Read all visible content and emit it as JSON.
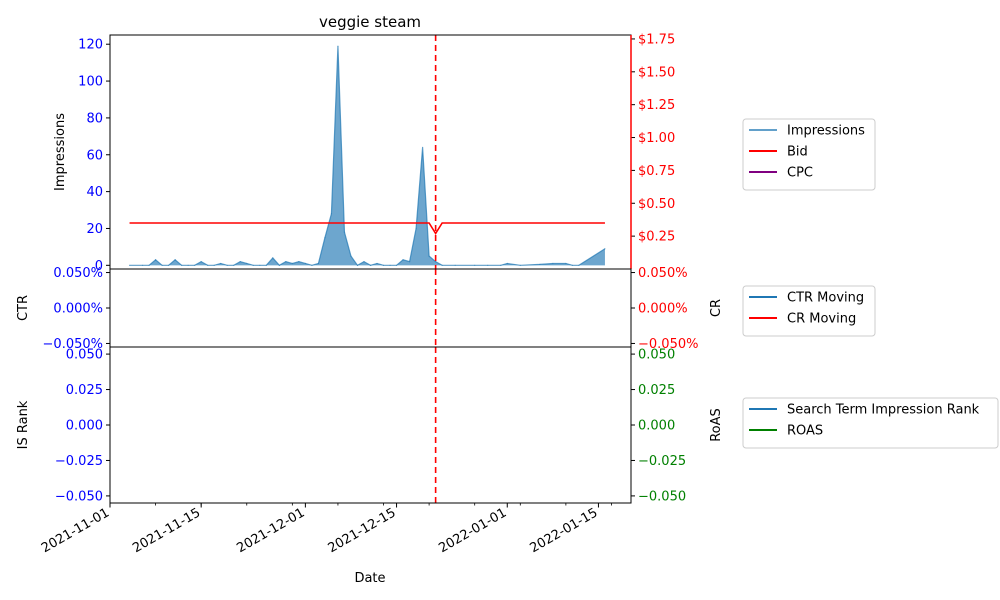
{
  "chart_data": {
    "type": "area",
    "title": "veggie steam",
    "xlabel": "Date",
    "x_range": [
      "2021-11-01",
      "2022-01-20"
    ],
    "x_ticks": [
      "2021-11-01",
      "2021-11-15",
      "2021-12-01",
      "2021-12-15",
      "2022-01-01",
      "2022-01-15"
    ],
    "vline": {
      "date": "2021-12-21",
      "color": "#ff0000",
      "style": "dashed"
    },
    "panels": [
      {
        "left_axis": {
          "label": "Impressions",
          "color": "#0000ff",
          "ylim": [
            -2,
            125
          ],
          "ticks": [
            0,
            20,
            40,
            60,
            80,
            100,
            120
          ],
          "tick_labels": [
            "0",
            "20",
            "40",
            "60",
            "80",
            "100",
            "120"
          ]
        },
        "right_axis": {
          "label": "",
          "color": "#ff0000",
          "ylim": [
            0.0,
            1.78
          ],
          "ticks": [
            0.25,
            0.5,
            0.75,
            1.0,
            1.25,
            1.5,
            1.75
          ],
          "tick_labels": [
            "$0.25",
            "$0.50",
            "$0.75",
            "$1.00",
            "$1.25",
            "$1.50",
            "$1.75"
          ]
        },
        "series": [
          {
            "name": "Impressions",
            "axis": "left",
            "kind": "area",
            "color": "#1f77b4",
            "x": [
              "2021-11-04",
              "2021-11-06",
              "2021-11-07",
              "2021-11-08",
              "2021-11-09",
              "2021-11-10",
              "2021-11-11",
              "2021-11-12",
              "2021-11-13",
              "2021-11-14",
              "2021-11-15",
              "2021-11-16",
              "2021-11-17",
              "2021-11-18",
              "2021-11-19",
              "2021-11-20",
              "2021-11-21",
              "2021-11-22",
              "2021-11-23",
              "2021-11-24",
              "2021-11-25",
              "2021-11-26",
              "2021-11-27",
              "2021-11-28",
              "2021-11-29",
              "2021-11-30",
              "2021-12-01",
              "2021-12-02",
              "2021-12-03",
              "2021-12-04",
              "2021-12-05",
              "2021-12-06",
              "2021-12-07",
              "2021-12-08",
              "2021-12-09",
              "2021-12-10",
              "2021-12-11",
              "2021-12-12",
              "2021-12-13",
              "2021-12-14",
              "2021-12-15",
              "2021-12-16",
              "2021-12-17",
              "2021-12-18",
              "2021-12-19",
              "2021-12-20",
              "2021-12-21",
              "2021-12-22",
              "2021-12-24",
              "2021-12-27",
              "2021-12-29",
              "2021-12-31",
              "2022-01-01",
              "2022-01-03",
              "2022-01-06",
              "2022-01-08",
              "2022-01-10",
              "2022-01-11",
              "2022-01-12",
              "2022-01-16"
            ],
            "values": [
              0,
              0,
              0,
              3,
              0,
              0,
              3,
              0,
              0,
              0,
              2,
              0,
              0,
              1,
              0,
              0,
              2,
              1,
              0,
              0,
              0,
              4,
              0,
              2,
              1,
              2,
              1,
              0,
              1,
              15,
              28,
              119,
              18,
              5,
              0,
              2,
              0,
              1,
              0,
              0,
              0,
              3,
              2,
              20,
              64,
              5,
              2,
              0,
              0,
              0,
              0,
              0,
              1,
              0,
              0.5,
              1,
              1,
              0,
              0,
              9
            ]
          },
          {
            "name": "Bid",
            "axis": "right",
            "kind": "line",
            "color": "#ff0000",
            "x": [
              "2021-11-04",
              "2021-12-20",
              "2021-12-21",
              "2021-12-22",
              "2022-01-16"
            ],
            "values": [
              0.35,
              0.35,
              0.27,
              0.35,
              0.35
            ]
          },
          {
            "name": "CPC",
            "axis": "right",
            "kind": "line",
            "color": "#800080",
            "x": [],
            "values": []
          }
        ],
        "legend": [
          "Impressions",
          "Bid",
          "CPC"
        ]
      },
      {
        "left_axis": {
          "label": "CTR",
          "color": "#0000ff",
          "ylim": [
            -0.055,
            0.055
          ],
          "ticks": [
            0.05,
            0.0,
            -0.05
          ],
          "tick_labels": [
            "0.050%",
            "0.000%",
            "−0.050%"
          ]
        },
        "right_axis": {
          "label": "CR",
          "color": "#ff0000",
          "ylim": [
            -0.055,
            0.055
          ],
          "ticks": [
            0.05,
            0.0,
            -0.05
          ],
          "tick_labels": [
            "0.050%",
            "0.000%",
            "−0.050%"
          ]
        },
        "series": [
          {
            "name": "CTR Moving",
            "color": "#1f77b4",
            "x": [],
            "values": []
          },
          {
            "name": "CR Moving",
            "color": "#ff0000",
            "x": [],
            "values": []
          }
        ],
        "legend": [
          "CTR Moving",
          "CR Moving"
        ]
      },
      {
        "left_axis": {
          "label": "IS Rank",
          "color": "#0000ff",
          "ylim": [
            -0.055,
            0.055
          ],
          "ticks": [
            0.05,
            0.025,
            0.0,
            -0.025,
            -0.05
          ],
          "tick_labels": [
            "0.050",
            "0.025",
            "0.000",
            "−0.025",
            "−0.050"
          ]
        },
        "right_axis": {
          "label": "RoAS",
          "color": "#008000",
          "ylim": [
            -0.055,
            0.055
          ],
          "ticks": [
            0.05,
            0.025,
            0.0,
            -0.025,
            -0.05
          ],
          "tick_labels": [
            "0.050",
            "0.025",
            "0.000",
            "−0.025",
            "−0.050"
          ]
        },
        "series": [
          {
            "name": "Search Term Impression Rank",
            "color": "#1f77b4",
            "x": [],
            "values": []
          },
          {
            "name": "ROAS",
            "color": "#008000",
            "x": [],
            "values": []
          }
        ],
        "legend": [
          "Search Term Impression Rank",
          "ROAS"
        ]
      }
    ]
  }
}
